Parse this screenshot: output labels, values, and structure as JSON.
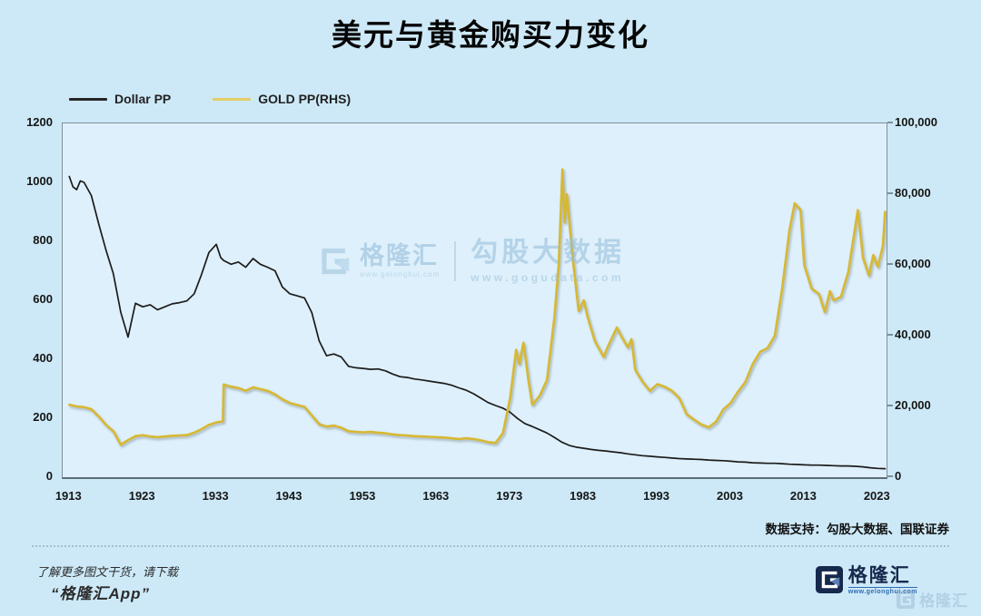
{
  "title": "美元与黄金购买力变化",
  "legend": {
    "dollar_label": "Dollar PP",
    "gold_label": "GOLD PP(RHS)",
    "dollar_color": "#262626",
    "gold_color": "#e2cd66"
  },
  "watermark": {
    "brand": "格隆汇",
    "brand_url": "www.gelonghui.com",
    "product": "勾股大数据",
    "product_url": "www.gogudata.com"
  },
  "source_note": "数据支持：勾股大数据、国联证券",
  "footer": {
    "line1": "了解更多图文干货，请下载",
    "line2": "“格隆汇App”",
    "logo_name": "格隆汇",
    "logo_url": "www.gelonghui.com",
    "logo_faded_name": "格隆汇"
  },
  "colors": {
    "background": "#cde9f7",
    "plot_background": "#def0fb",
    "plot_border": "#7e909b",
    "dollar_line": "#1c1c1c",
    "gold_line": "#d7b832"
  },
  "chart_data": {
    "type": "line",
    "title": "美元与黄金购买力变化",
    "x_range": [
      1912.1,
      2024.2
    ],
    "x_ticks": [
      1913,
      1923,
      1933,
      1943,
      1953,
      1963,
      1973,
      1983,
      1993,
      2003,
      2013,
      2023
    ],
    "left_axis": {
      "label": "Dollar PP",
      "range": [
        0,
        1200
      ],
      "tick_values": [
        0,
        200,
        400,
        600,
        800,
        1000,
        1200
      ],
      "tick_labels": [
        "0",
        "200",
        "400",
        "600",
        "800",
        "1000",
        "1200"
      ]
    },
    "right_axis": {
      "label": "GOLD PP(RHS)",
      "range": [
        0,
        100000
      ],
      "tick_values": [
        0,
        20000,
        40000,
        60000,
        80000,
        100000
      ],
      "tick_labels": [
        "0",
        "20,000",
        "40,000",
        "60,000",
        "80,000",
        "100,000"
      ]
    },
    "grid": false,
    "legend_position": "top-left",
    "series": [
      {
        "name": "Dollar PP",
        "axis": "left",
        "color": "#1c1c1c",
        "points": [
          [
            1913,
            1020
          ],
          [
            1913.5,
            985
          ],
          [
            1914,
            975
          ],
          [
            1914.5,
            1005
          ],
          [
            1915,
            1000
          ],
          [
            1916,
            955
          ],
          [
            1917,
            860
          ],
          [
            1918,
            770
          ],
          [
            1919,
            690
          ],
          [
            1920,
            560
          ],
          [
            1921,
            475
          ],
          [
            1922,
            590
          ],
          [
            1923,
            578
          ],
          [
            1924,
            585
          ],
          [
            1925,
            568
          ],
          [
            1926,
            578
          ],
          [
            1927,
            588
          ],
          [
            1928,
            592
          ],
          [
            1929,
            598
          ],
          [
            1930,
            622
          ],
          [
            1931,
            688
          ],
          [
            1932,
            762
          ],
          [
            1933,
            790
          ],
          [
            1933.6,
            745
          ],
          [
            1934,
            735
          ],
          [
            1935,
            722
          ],
          [
            1936,
            730
          ],
          [
            1937,
            712
          ],
          [
            1938,
            742
          ],
          [
            1939,
            722
          ],
          [
            1940,
            712
          ],
          [
            1941,
            700
          ],
          [
            1942,
            645
          ],
          [
            1943,
            622
          ],
          [
            1944,
            615
          ],
          [
            1945,
            608
          ],
          [
            1946,
            558
          ],
          [
            1947,
            462
          ],
          [
            1948,
            412
          ],
          [
            1949,
            418
          ],
          [
            1950,
            408
          ],
          [
            1951,
            376
          ],
          [
            1952,
            371
          ],
          [
            1953,
            369
          ],
          [
            1954,
            366
          ],
          [
            1955,
            367
          ],
          [
            1956,
            361
          ],
          [
            1957,
            350
          ],
          [
            1958,
            341
          ],
          [
            1959,
            338
          ],
          [
            1960,
            333
          ],
          [
            1961,
            330
          ],
          [
            1962,
            326
          ],
          [
            1963,
            322
          ],
          [
            1964,
            318
          ],
          [
            1965,
            312
          ],
          [
            1966,
            303
          ],
          [
            1967,
            295
          ],
          [
            1968,
            283
          ],
          [
            1969,
            268
          ],
          [
            1970,
            253
          ],
          [
            1971,
            243
          ],
          [
            1972,
            234
          ],
          [
            1973,
            220
          ],
          [
            1974,
            199
          ],
          [
            1975,
            182
          ],
          [
            1976,
            172
          ],
          [
            1977,
            161
          ],
          [
            1978,
            150
          ],
          [
            1979,
            135
          ],
          [
            1980,
            119
          ],
          [
            1981,
            108
          ],
          [
            1982,
            102
          ],
          [
            1983,
            98
          ],
          [
            1984,
            94
          ],
          [
            1985,
            91
          ],
          [
            1986,
            89
          ],
          [
            1987,
            86
          ],
          [
            1988,
            83
          ],
          [
            1989,
            79
          ],
          [
            1990,
            76
          ],
          [
            1991,
            73
          ],
          [
            1992,
            71
          ],
          [
            1993,
            69
          ],
          [
            1994,
            67
          ],
          [
            1995,
            65
          ],
          [
            1996,
            63
          ],
          [
            1997,
            62
          ],
          [
            1998,
            61
          ],
          [
            1999,
            60
          ],
          [
            2000,
            58
          ],
          [
            2001,
            57
          ],
          [
            2002,
            56
          ],
          [
            2003,
            54
          ],
          [
            2004,
            52
          ],
          [
            2005,
            51
          ],
          [
            2006,
            49
          ],
          [
            2007,
            48
          ],
          [
            2008,
            47
          ],
          [
            2009,
            47
          ],
          [
            2010,
            46
          ],
          [
            2011,
            44
          ],
          [
            2012,
            43
          ],
          [
            2013,
            42
          ],
          [
            2014,
            41
          ],
          [
            2015,
            41
          ],
          [
            2016,
            40
          ],
          [
            2017,
            39
          ],
          [
            2018,
            38
          ],
          [
            2019,
            38
          ],
          [
            2020,
            37
          ],
          [
            2021,
            35
          ],
          [
            2022,
            32
          ],
          [
            2023,
            30
          ],
          [
            2024,
            29
          ]
        ]
      },
      {
        "name": "GOLD PP(RHS)",
        "axis": "right",
        "color": "#d7b832",
        "points": [
          [
            1913,
            20500
          ],
          [
            1914,
            20000
          ],
          [
            1915,
            19800
          ],
          [
            1916,
            19200
          ],
          [
            1917,
            17200
          ],
          [
            1918,
            14800
          ],
          [
            1919,
            13000
          ],
          [
            1920,
            9200
          ],
          [
            1921,
            10500
          ],
          [
            1922,
            11600
          ],
          [
            1923,
            11900
          ],
          [
            1924,
            11500
          ],
          [
            1925,
            11300
          ],
          [
            1926,
            11500
          ],
          [
            1927,
            11700
          ],
          [
            1928,
            11800
          ],
          [
            1929,
            11900
          ],
          [
            1930,
            12600
          ],
          [
            1931,
            13600
          ],
          [
            1932,
            14800
          ],
          [
            1933,
            15500
          ],
          [
            1933.9,
            15800
          ],
          [
            1934,
            26200
          ],
          [
            1935,
            25600
          ],
          [
            1936,
            25200
          ],
          [
            1937,
            24400
          ],
          [
            1938,
            25400
          ],
          [
            1939,
            24900
          ],
          [
            1940,
            24400
          ],
          [
            1941,
            23400
          ],
          [
            1942,
            22000
          ],
          [
            1943,
            21000
          ],
          [
            1944,
            20400
          ],
          [
            1945,
            19900
          ],
          [
            1946,
            17400
          ],
          [
            1947,
            15000
          ],
          [
            1948,
            14300
          ],
          [
            1949,
            14600
          ],
          [
            1950,
            14000
          ],
          [
            1951,
            13000
          ],
          [
            1952,
            12800
          ],
          [
            1953,
            12700
          ],
          [
            1954,
            12800
          ],
          [
            1955,
            12600
          ],
          [
            1956,
            12400
          ],
          [
            1957,
            12100
          ],
          [
            1958,
            11900
          ],
          [
            1959,
            11800
          ],
          [
            1960,
            11600
          ],
          [
            1961,
            11500
          ],
          [
            1962,
            11400
          ],
          [
            1963,
            11300
          ],
          [
            1964,
            11200
          ],
          [
            1965,
            11000
          ],
          [
            1966,
            10800
          ],
          [
            1967,
            11000
          ],
          [
            1968,
            10800
          ],
          [
            1969,
            10400
          ],
          [
            1970,
            9900
          ],
          [
            1971,
            9700
          ],
          [
            1972,
            12500
          ],
          [
            1973,
            22500
          ],
          [
            1973.8,
            36000
          ],
          [
            1974.2,
            32000
          ],
          [
            1974.8,
            38000
          ],
          [
            1975.5,
            27000
          ],
          [
            1976,
            20500
          ],
          [
            1977,
            23000
          ],
          [
            1978,
            27500
          ],
          [
            1979,
            45000
          ],
          [
            1979.6,
            60000
          ],
          [
            1980.1,
            87000
          ],
          [
            1980.4,
            72000
          ],
          [
            1980.7,
            80000
          ],
          [
            1981.5,
            62000
          ],
          [
            1982.3,
            47000
          ],
          [
            1983,
            50000
          ],
          [
            1983.5,
            45500
          ],
          [
            1984.5,
            38500
          ],
          [
            1985.7,
            34000
          ],
          [
            1986.4,
            37500
          ],
          [
            1987.5,
            42300
          ],
          [
            1988.2,
            39500
          ],
          [
            1989,
            36700
          ],
          [
            1989.5,
            39000
          ],
          [
            1990,
            30400
          ],
          [
            1991,
            27000
          ],
          [
            1992,
            24400
          ],
          [
            1993,
            26300
          ],
          [
            1994,
            25600
          ],
          [
            1995,
            24400
          ],
          [
            1996,
            22400
          ],
          [
            1997,
            17800
          ],
          [
            1998,
            16300
          ],
          [
            1999,
            14900
          ],
          [
            2000,
            14100
          ],
          [
            2001,
            15700
          ],
          [
            2002,
            19200
          ],
          [
            2003,
            21000
          ],
          [
            2004,
            24200
          ],
          [
            2005,
            27000
          ],
          [
            2006,
            32000
          ],
          [
            2007,
            35400
          ],
          [
            2008,
            36500
          ],
          [
            2009,
            40000
          ],
          [
            2010,
            53300
          ],
          [
            2011,
            70000
          ],
          [
            2011.7,
            77400
          ],
          [
            2012.5,
            75600
          ],
          [
            2013,
            60000
          ],
          [
            2014,
            53300
          ],
          [
            2015,
            51800
          ],
          [
            2015.8,
            46700
          ],
          [
            2016.5,
            52600
          ],
          [
            2017,
            50000
          ],
          [
            2018,
            51000
          ],
          [
            2019,
            58000
          ],
          [
            2020.3,
            75500
          ],
          [
            2021,
            62000
          ],
          [
            2021.8,
            57000
          ],
          [
            2022.4,
            62800
          ],
          [
            2023,
            59500
          ],
          [
            2023.7,
            65400
          ],
          [
            2024,
            75000
          ]
        ]
      }
    ]
  }
}
